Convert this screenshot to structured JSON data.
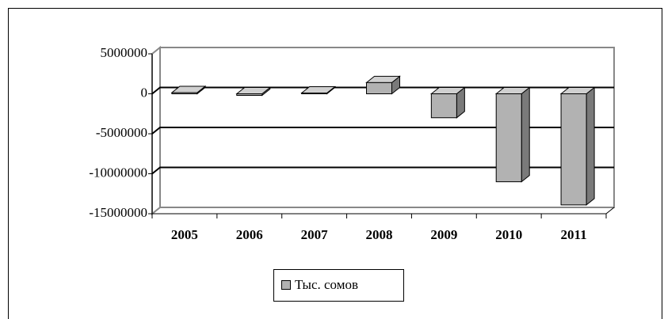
{
  "chart_data": {
    "type": "bar3d",
    "categories": [
      "2005",
      "2006",
      "2007",
      "2008",
      "2009",
      "2010",
      "2011"
    ],
    "series": [
      {
        "name": "Тыс. сомов",
        "color": "#b2b2b2",
        "values": [
          150000,
          -200000,
          100000,
          1400000,
          -3000000,
          -11000000,
          -13900000
        ]
      }
    ],
    "ylim": [
      -15000000,
      5000000
    ],
    "yticks": [
      5000000,
      0,
      -5000000,
      -10000000,
      -15000000
    ],
    "grid": true,
    "legend": "bottom"
  }
}
